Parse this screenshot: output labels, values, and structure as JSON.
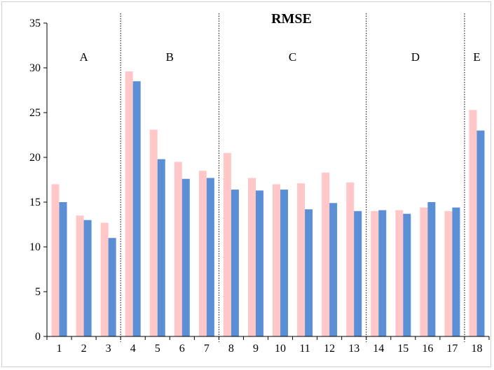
{
  "chart_data": {
    "type": "bar",
    "title": "RMSE",
    "xlabel": "",
    "ylabel": "",
    "ylim": [
      0,
      35
    ],
    "yticks": [
      "0",
      "5",
      "10",
      "15",
      "20",
      "25",
      "30",
      "35"
    ],
    "categories": [
      "1",
      "2",
      "3",
      "4",
      "5",
      "6",
      "7",
      "8",
      "9",
      "10",
      "11",
      "12",
      "13",
      "14",
      "15",
      "16",
      "17",
      "18"
    ],
    "series": [
      {
        "color": "#ffc7c7",
        "values": [
          17.0,
          13.5,
          12.7,
          29.6,
          23.1,
          19.5,
          18.5,
          20.5,
          17.7,
          17.0,
          17.1,
          18.3,
          17.2,
          14.0,
          14.1,
          14.4,
          14.0,
          25.3
        ]
      },
      {
        "color": "#5a8fd6",
        "values": [
          15.0,
          13.0,
          11.0,
          28.5,
          19.8,
          17.6,
          17.7,
          16.4,
          16.3,
          16.4,
          14.2,
          14.9,
          14.0,
          14.1,
          13.7,
          15.0,
          14.4,
          23.0
        ]
      }
    ],
    "groups": [
      {
        "label": "A",
        "first": 0,
        "last": 2
      },
      {
        "label": "B",
        "first": 3,
        "last": 6
      },
      {
        "label": "C",
        "first": 7,
        "last": 12
      },
      {
        "label": "D",
        "first": 13,
        "last": 16
      },
      {
        "label": "E",
        "first": 17,
        "last": 17
      }
    ],
    "grid": false,
    "legend": "none"
  }
}
